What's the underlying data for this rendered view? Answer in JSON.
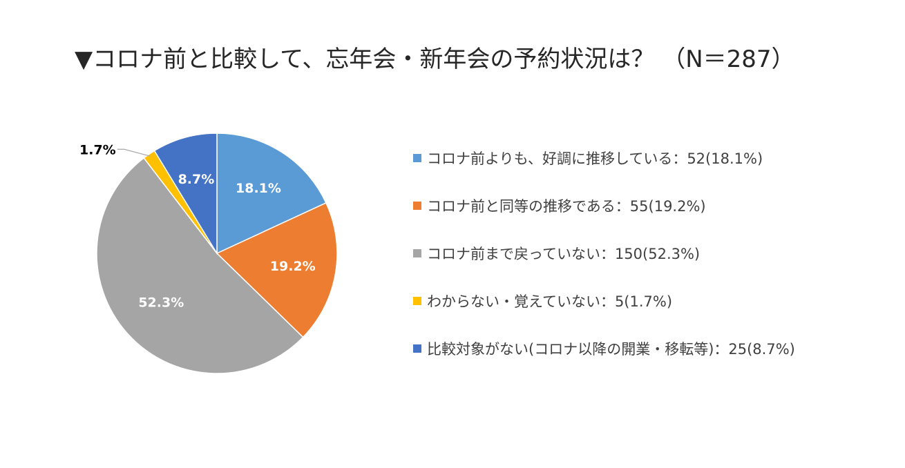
{
  "chart_data": {
    "type": "pie",
    "title": "▼コロナ前と比較して、忘年会・新年会の予約状況は？ （N＝287）",
    "legend_position": "right",
    "start_angle_deg": 0,
    "direction": "clockwise",
    "slices": [
      {
        "legend": "コロナ前よりも、好調に推移している：52(18.1%)",
        "count": 52,
        "percent": 18.1,
        "data_label": "18.1%",
        "color": "#5B9BD5",
        "label_placement": "inside"
      },
      {
        "legend": "コロナ前と同等の推移である：55(19.2%)",
        "count": 55,
        "percent": 19.2,
        "data_label": "19.2%",
        "color": "#ED7D31",
        "label_placement": "inside"
      },
      {
        "legend": "コロナ前まで戻っていない：150(52.3%)",
        "count": 150,
        "percent": 52.3,
        "data_label": "52.3%",
        "color": "#A5A5A5",
        "label_placement": "inside"
      },
      {
        "legend": "わからない・覚えていない：5(1.7%)",
        "count": 5,
        "percent": 1.7,
        "data_label": "1.7%",
        "color": "#FFC000",
        "label_placement": "outside"
      },
      {
        "legend": "比較対象がない(コロナ以降の開業・移転等)：25(8.7%)",
        "count": 25,
        "percent": 8.7,
        "data_label": "8.7%",
        "color": "#4472C4",
        "label_placement": "inside"
      }
    ]
  }
}
